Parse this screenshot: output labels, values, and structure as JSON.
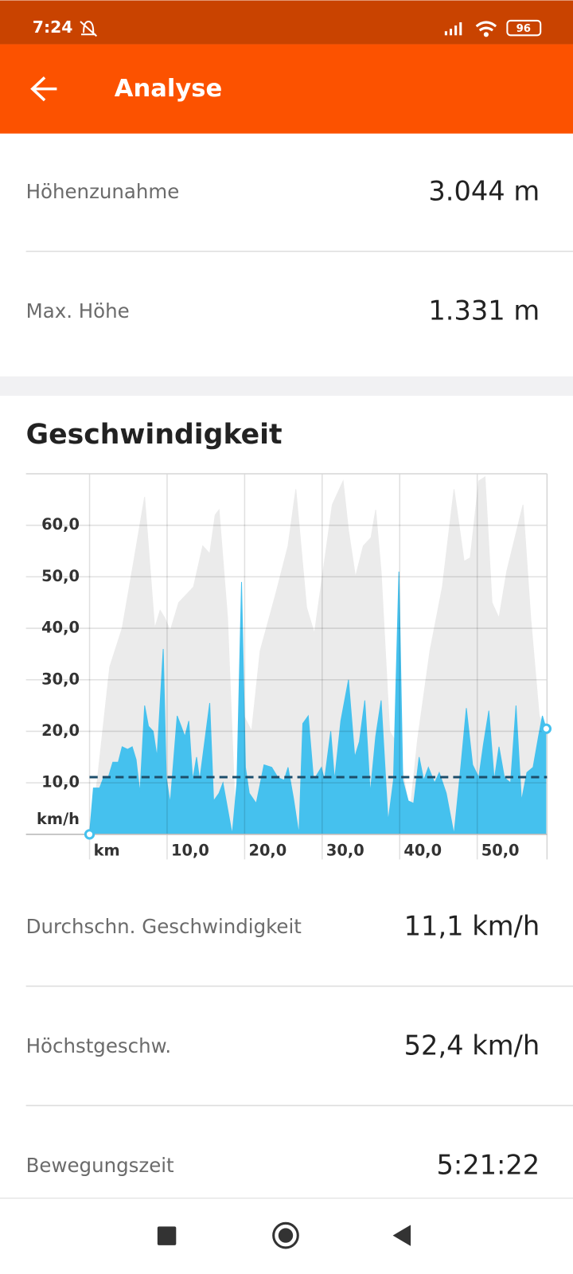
{
  "status_bar": {
    "time": "7:24",
    "battery": "96"
  },
  "app_bar": {
    "title": "Analyse"
  },
  "stats_top": [
    {
      "label": "Höhenzunahme",
      "value": "3.044 m"
    },
    {
      "label": "Max. Höhe",
      "value": "1.331 m"
    }
  ],
  "chart_data": {
    "type": "area",
    "title": "Geschwindigkeit",
    "ylabel": "km/h",
    "xlim": [
      -8.2,
      59
    ],
    "ylim": [
      0,
      70
    ],
    "xticks": [
      {
        "value": 0,
        "label": "km"
      },
      {
        "value": 10,
        "label": "10,0"
      },
      {
        "value": 20,
        "label": "20,0"
      },
      {
        "value": 30,
        "label": "30,0"
      },
      {
        "value": 40,
        "label": "40,0"
      },
      {
        "value": 50,
        "label": "50,0"
      }
    ],
    "yticks": [
      {
        "value": 10,
        "label": "10,0"
      },
      {
        "value": 20,
        "label": "20,0"
      },
      {
        "value": 30,
        "label": "30,0"
      },
      {
        "value": 40,
        "label": "40,0"
      },
      {
        "value": 50,
        "label": "50,0"
      },
      {
        "value": 60,
        "label": "60,0"
      }
    ],
    "grid": true,
    "series": [
      {
        "color": "#ebebeb",
        "x": [
          0,
          1.0,
          2.6,
          4.2,
          5.7,
          7.1,
          8.4,
          9.1,
          9.7,
          10.4,
          11.5,
          13.4,
          14.6,
          15.5,
          16.2,
          16.7,
          17.8,
          18.8,
          19.9,
          20.9,
          22.0,
          24.0,
          25.6,
          26.6,
          28.0,
          29.0,
          30.3,
          31.3,
          32.7,
          33.4,
          34.3,
          35.3,
          36.3,
          36.9,
          37.6,
          38.7,
          39.9,
          41.3,
          42.3,
          43.9,
          45.5,
          47.0,
          48.3,
          49.1,
          50.2,
          51.0,
          51.9,
          52.8,
          53.8,
          55.9,
          56.9,
          58.0,
          58.9
        ],
        "values": [
          0,
          10.5,
          32.5,
          40,
          53,
          65.5,
          40,
          43.5,
          42,
          39.5,
          45,
          48,
          56,
          54.5,
          62,
          63,
          42,
          4,
          23,
          20,
          35.6,
          46.6,
          56,
          67,
          44,
          39,
          53,
          64,
          68.6,
          59,
          50,
          56,
          57.6,
          63,
          51,
          20,
          17,
          4,
          18.4,
          35.6,
          48,
          67,
          53,
          53.7,
          68.6,
          69.4,
          45,
          42,
          51,
          64,
          42,
          23,
          20
        ]
      },
      {
        "color": "#45c1ee",
        "x": [
          0,
          0.5,
          1.3,
          1.8,
          2.4,
          3.0,
          3.7,
          4.2,
          4.9,
          5.5,
          6.0,
          6.5,
          7.1,
          7.6,
          8.2,
          8.7,
          9.5,
          9.9,
          10.4,
          11.3,
          11.8,
          12.3,
          12.8,
          13.3,
          13.8,
          14.2,
          15.5,
          16.0,
          16.7,
          17.2,
          18.4,
          19.0,
          19.6,
          20.1,
          20.6,
          21.5,
          22.5,
          23.5,
          24.3,
          25.1,
          25.6,
          26.3,
          27.0,
          27.5,
          28.2,
          28.9,
          29.9,
          30.3,
          31.1,
          31.6,
          32.4,
          33.4,
          34.2,
          34.8,
          35.5,
          36.2,
          36.9,
          37.6,
          38.5,
          39.2,
          39.9,
          40.4,
          41.1,
          41.8,
          42.5,
          43.1,
          43.7,
          44.5,
          45.1,
          46.0,
          47.0,
          47.9,
          48.6,
          49.4,
          50.2,
          50.8,
          51.5,
          52.2,
          52.8,
          53.5,
          54.3,
          55.0,
          55.7,
          56.4,
          57.2,
          57.9,
          58.4,
          58.9
        ],
        "values": [
          0,
          9,
          9,
          11,
          11,
          14,
          14,
          17,
          16.5,
          17,
          14.5,
          8,
          25,
          21,
          20,
          15,
          36,
          11,
          6,
          23,
          21,
          19,
          22,
          10.5,
          15,
          10.5,
          25.5,
          6.5,
          8,
          10,
          0,
          10,
          49,
          13,
          8,
          6,
          13.5,
          13,
          11,
          10.5,
          13,
          7,
          0,
          21.5,
          23,
          10.5,
          13,
          10.5,
          20,
          10.5,
          22,
          30,
          15,
          18,
          26,
          8,
          19,
          26,
          2.5,
          10.5,
          51,
          10.5,
          6.5,
          6,
          15,
          10.5,
          13,
          10,
          12,
          8,
          0,
          13.5,
          24.5,
          13.5,
          11,
          17.5,
          24,
          10.5,
          17,
          11,
          10,
          25,
          6.5,
          12,
          13,
          19,
          23,
          20.5
        ]
      }
    ],
    "reference_line": 11.1,
    "reference_color": "#1d4e6b"
  },
  "stats_bottom": [
    {
      "label": "Durchschn. Geschwindigkeit",
      "value": "11,1 km/h"
    },
    {
      "label": "Höchstgeschw.",
      "value": "52,4 km/h"
    },
    {
      "label": "Bewegungszeit",
      "value": "5:21:22"
    }
  ]
}
